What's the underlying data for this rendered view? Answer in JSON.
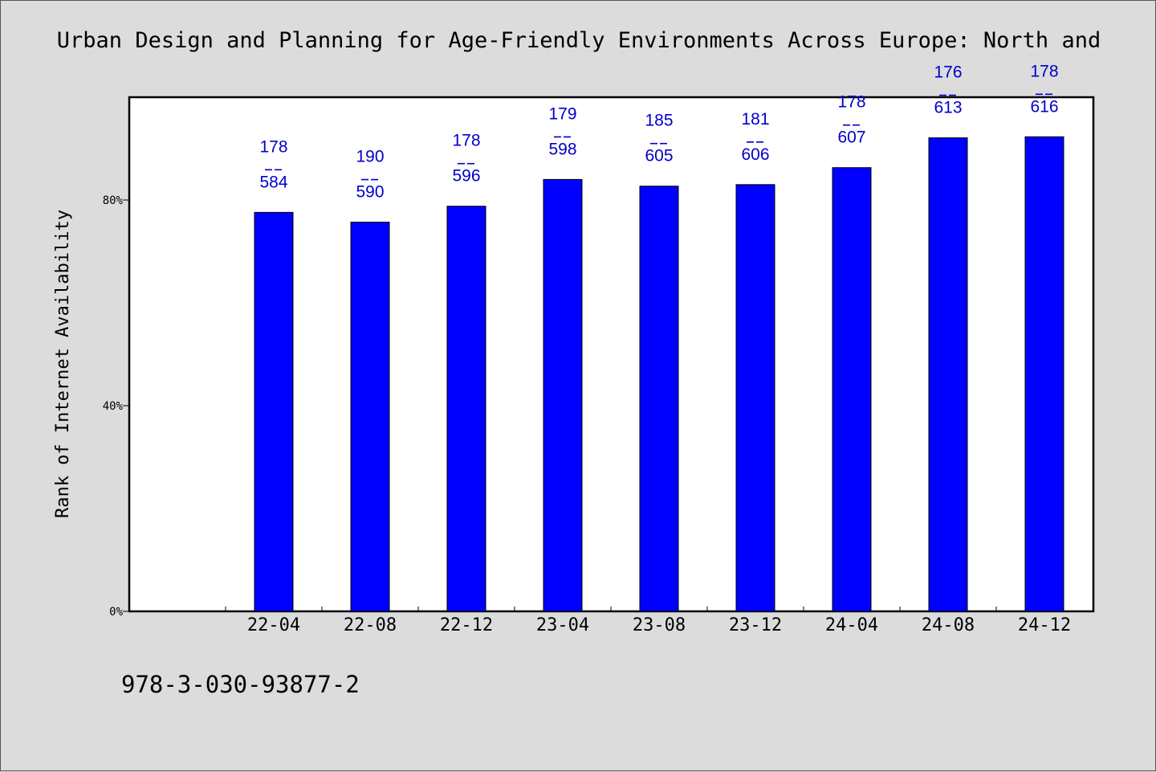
{
  "chart_data": {
    "type": "bar",
    "title": "Urban Design and Planning for Age-Friendly Environments Across Europe: North and",
    "ylabel": "Rank of Internet Availability",
    "xlabel": "",
    "ylim": [
      0,
      100
    ],
    "yticks": [
      0,
      40,
      80
    ],
    "ytick_labels": [
      "0%",
      "40%",
      "80%"
    ],
    "categories": [
      "22-04",
      "22-08",
      "22-12",
      "23-04",
      "23-08",
      "23-12",
      "24-04",
      "24-08",
      "24-12"
    ],
    "values": [
      77.6,
      75.7,
      78.8,
      84.0,
      82.7,
      83.0,
      86.3,
      92.1,
      92.3
    ],
    "labels_top": [
      "178",
      "190",
      "178",
      "179",
      "185",
      "181",
      "178",
      "176",
      "178"
    ],
    "labels_bottom": [
      "584",
      "590",
      "596",
      "598",
      "605",
      "606",
      "607",
      "613",
      "616"
    ],
    "bar_color": "#0000ff",
    "label_color": "#0000cc",
    "grid": false,
    "legend": "none"
  },
  "footer_text": "978-3-030-93877-2"
}
